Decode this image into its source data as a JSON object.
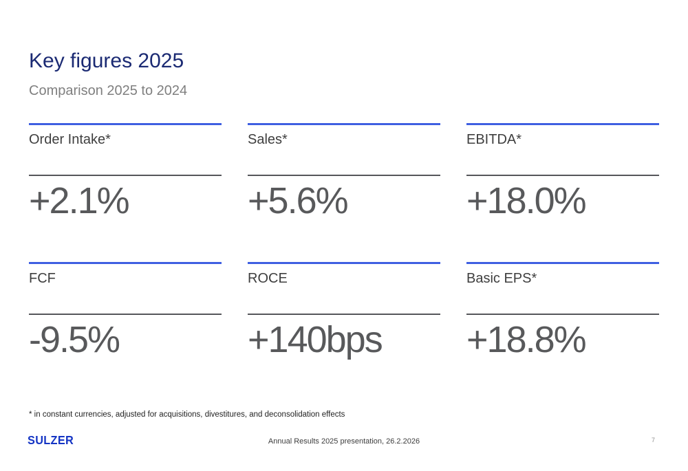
{
  "slide": {
    "title": "Key figures 2025",
    "subtitle": "Comparison 2025 to 2024",
    "metrics": [
      {
        "label": "Order Intake*",
        "value": "+2.1%"
      },
      {
        "label": "Sales*",
        "value": "+5.6%"
      },
      {
        "label": "EBITDA*",
        "value": "+18.0%"
      },
      {
        "label": "FCF",
        "value": "-9.5%"
      },
      {
        "label": "ROCE",
        "value": "+140bps"
      },
      {
        "label": "Basic EPS*",
        "value": "+18.8%"
      }
    ],
    "footnote": "* in constant currencies, adjusted for acquisitions, divestitures, and deconsolidation effects",
    "footer": {
      "logo_text": "SULZER",
      "caption": "Annual Results 2025 presentation, 26.2.2026",
      "page_number": "7"
    },
    "colors": {
      "title": "#1B2A73",
      "accent_line": "#3F5FE1",
      "divider_line": "#55565A",
      "label_text": "#3E3E3E",
      "value_text": "#58595B",
      "logo_blue": "#1535C4"
    }
  }
}
